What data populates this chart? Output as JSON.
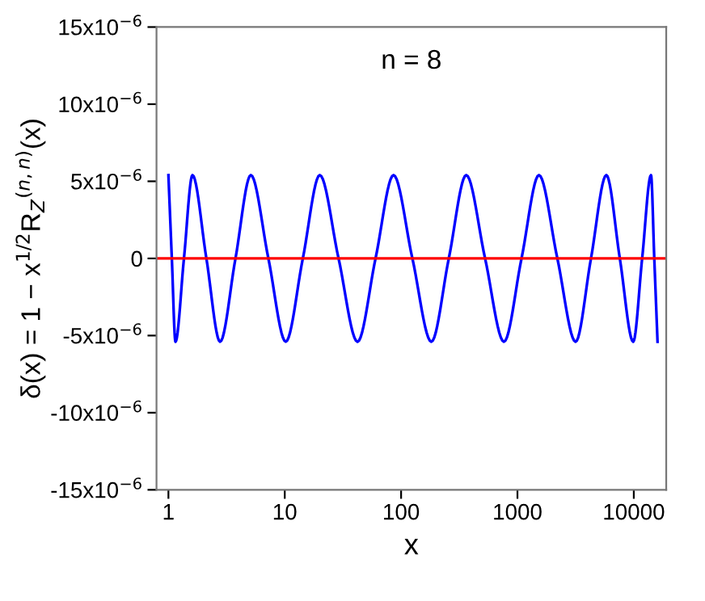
{
  "chart_data": {
    "type": "line",
    "x": [
      1,
      1.07,
      1.15,
      1.36,
      1.61,
      2.12,
      2.78,
      3.77,
      5.11,
      7.23,
      10.2,
      14.3,
      20.0,
      29.0,
      42.2,
      60.3,
      86.1,
      125,
      182,
      257,
      363,
      527,
      766,
      1084,
      1531,
      2203,
      3162,
      4285,
      5808,
      7586,
      9886,
      11800,
      14060,
      15000,
      16000
    ],
    "series": [
      {
        "color": "#0000ff",
        "values": [
          5.4e-06,
          0,
          -5.4e-06,
          0,
          5.4e-06,
          0,
          -5.4e-06,
          0,
          5.4e-06,
          0,
          -5.4e-06,
          0,
          5.4e-06,
          0,
          -5.4e-06,
          0,
          5.4e-06,
          0,
          -5.4e-06,
          0,
          5.4e-06,
          0,
          -5.4e-06,
          0,
          5.4e-06,
          0,
          -5.4e-06,
          0,
          5.4e-06,
          0,
          -5.4e-06,
          0,
          5.4e-06,
          0,
          -5.4e-06
        ]
      }
    ],
    "ref_lines": [
      {
        "axis": "y",
        "value": 0,
        "color": "#ff0000"
      }
    ],
    "log": "x",
    "xlim": [
      0.79,
      19000
    ],
    "xticks": [
      1,
      10,
      100,
      1000,
      10000
    ],
    "ylim": [
      -1.5e-05,
      1.5e-05
    ],
    "yticks": [
      {
        "value": -1.5e-05,
        "label": "-15x10$^{−6}$"
      },
      {
        "value": -1e-05,
        "label": "-10x10$^{−6}$"
      },
      {
        "value": -5e-06,
        "label": "-5x10$^{−6}$"
      },
      {
        "value": 0,
        "label": "0"
      },
      {
        "value": 5e-06,
        "label": "5x10$^{−6}$"
      },
      {
        "value": 1e-05,
        "label": "10x10$^{−6}$"
      },
      {
        "value": 1.5e-05,
        "label": "15x10$^{−6}$"
      }
    ],
    "xlabel": "x",
    "ylabel": "δ(x) = 1 − x$^{1/2}$R$_{Z}$$^{(n,n)}$(x)",
    "annotations": [
      "n = 8"
    ],
    "grid": false,
    "legend": false,
    "line_style": "solid",
    "marker": "none"
  }
}
